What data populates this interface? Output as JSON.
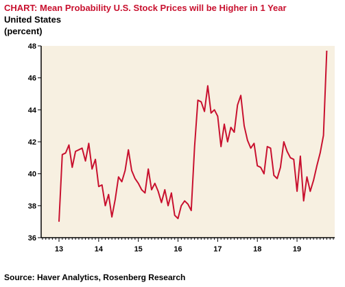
{
  "chart_data": {
    "type": "line",
    "title": "CHART: Mean Probability U.S. Stock Prices will be Higher in 1 Year",
    "subtitle": [
      "United States",
      "(percent)"
    ],
    "source": "Source: Haver Analytics, Rosenberg Research",
    "xlabel": "",
    "ylabel": "",
    "ylim": [
      36,
      48
    ],
    "xlim": [
      2012.55,
      2019.95
    ],
    "grid": false,
    "y_ticks": [
      36,
      38,
      40,
      42,
      44,
      46,
      48
    ],
    "x_tick_labels": [
      {
        "label": "13",
        "x": 2013.0
      },
      {
        "label": "14",
        "x": 2014.0
      },
      {
        "label": "15",
        "x": 2015.0
      },
      {
        "label": "16",
        "x": 2016.0
      },
      {
        "label": "17",
        "x": 2017.0
      },
      {
        "label": "18",
        "x": 2018.0
      },
      {
        "label": "19",
        "x": 2019.0
      }
    ],
    "colors": {
      "line": "#c8102e",
      "plot_bg": "#f7f0e1",
      "title": "#c8102e"
    },
    "series": [
      {
        "x": [
          2013.0,
          2013.083,
          2013.167,
          2013.25,
          2013.333,
          2013.417,
          2013.5,
          2013.583,
          2013.667,
          2013.75,
          2013.833,
          2013.917,
          2014.0,
          2014.083,
          2014.167,
          2014.25,
          2014.333,
          2014.417,
          2014.5,
          2014.583,
          2014.667,
          2014.75,
          2014.833,
          2014.917,
          2015.0,
          2015.083,
          2015.167,
          2015.25,
          2015.333,
          2015.417,
          2015.5,
          2015.583,
          2015.667,
          2015.75,
          2015.833,
          2015.917,
          2016.0,
          2016.083,
          2016.167,
          2016.25,
          2016.333,
          2016.417,
          2016.5,
          2016.583,
          2016.667,
          2016.75,
          2016.833,
          2016.917,
          2017.0,
          2017.083,
          2017.167,
          2017.25,
          2017.333,
          2017.417,
          2017.5,
          2017.583,
          2017.667,
          2017.75,
          2017.833,
          2017.917,
          2018.0,
          2018.083,
          2018.167,
          2018.25,
          2018.333,
          2018.417,
          2018.5,
          2018.583,
          2018.667,
          2018.75,
          2018.833,
          2018.917,
          2019.0,
          2019.083,
          2019.167,
          2019.25,
          2019.333,
          2019.417,
          2019.5,
          2019.583,
          2019.667,
          2019.75
        ],
        "values": [
          37.0,
          41.2,
          41.3,
          41.8,
          40.4,
          41.4,
          41.5,
          41.6,
          40.8,
          41.9,
          40.3,
          40.9,
          39.2,
          39.3,
          38.0,
          38.7,
          37.3,
          38.4,
          39.8,
          39.5,
          40.2,
          41.5,
          40.2,
          39.7,
          39.4,
          39.0,
          38.8,
          40.3,
          39.0,
          39.4,
          38.9,
          38.2,
          39.0,
          38.0,
          38.8,
          37.4,
          37.2,
          38.0,
          38.3,
          38.1,
          37.7,
          41.7,
          44.6,
          44.5,
          43.9,
          45.5,
          43.8,
          44.0,
          43.6,
          41.7,
          43.1,
          42.0,
          42.9,
          42.6,
          44.3,
          44.9,
          43.0,
          42.1,
          41.6,
          41.9,
          40.5,
          40.4,
          40.0,
          41.7,
          41.6,
          39.9,
          39.7,
          40.4,
          42.0,
          41.4,
          41.0,
          40.9,
          38.9,
          41.1,
          38.3,
          39.8,
          38.9,
          39.6,
          40.5,
          41.3,
          42.4,
          47.7
        ]
      }
    ]
  }
}
